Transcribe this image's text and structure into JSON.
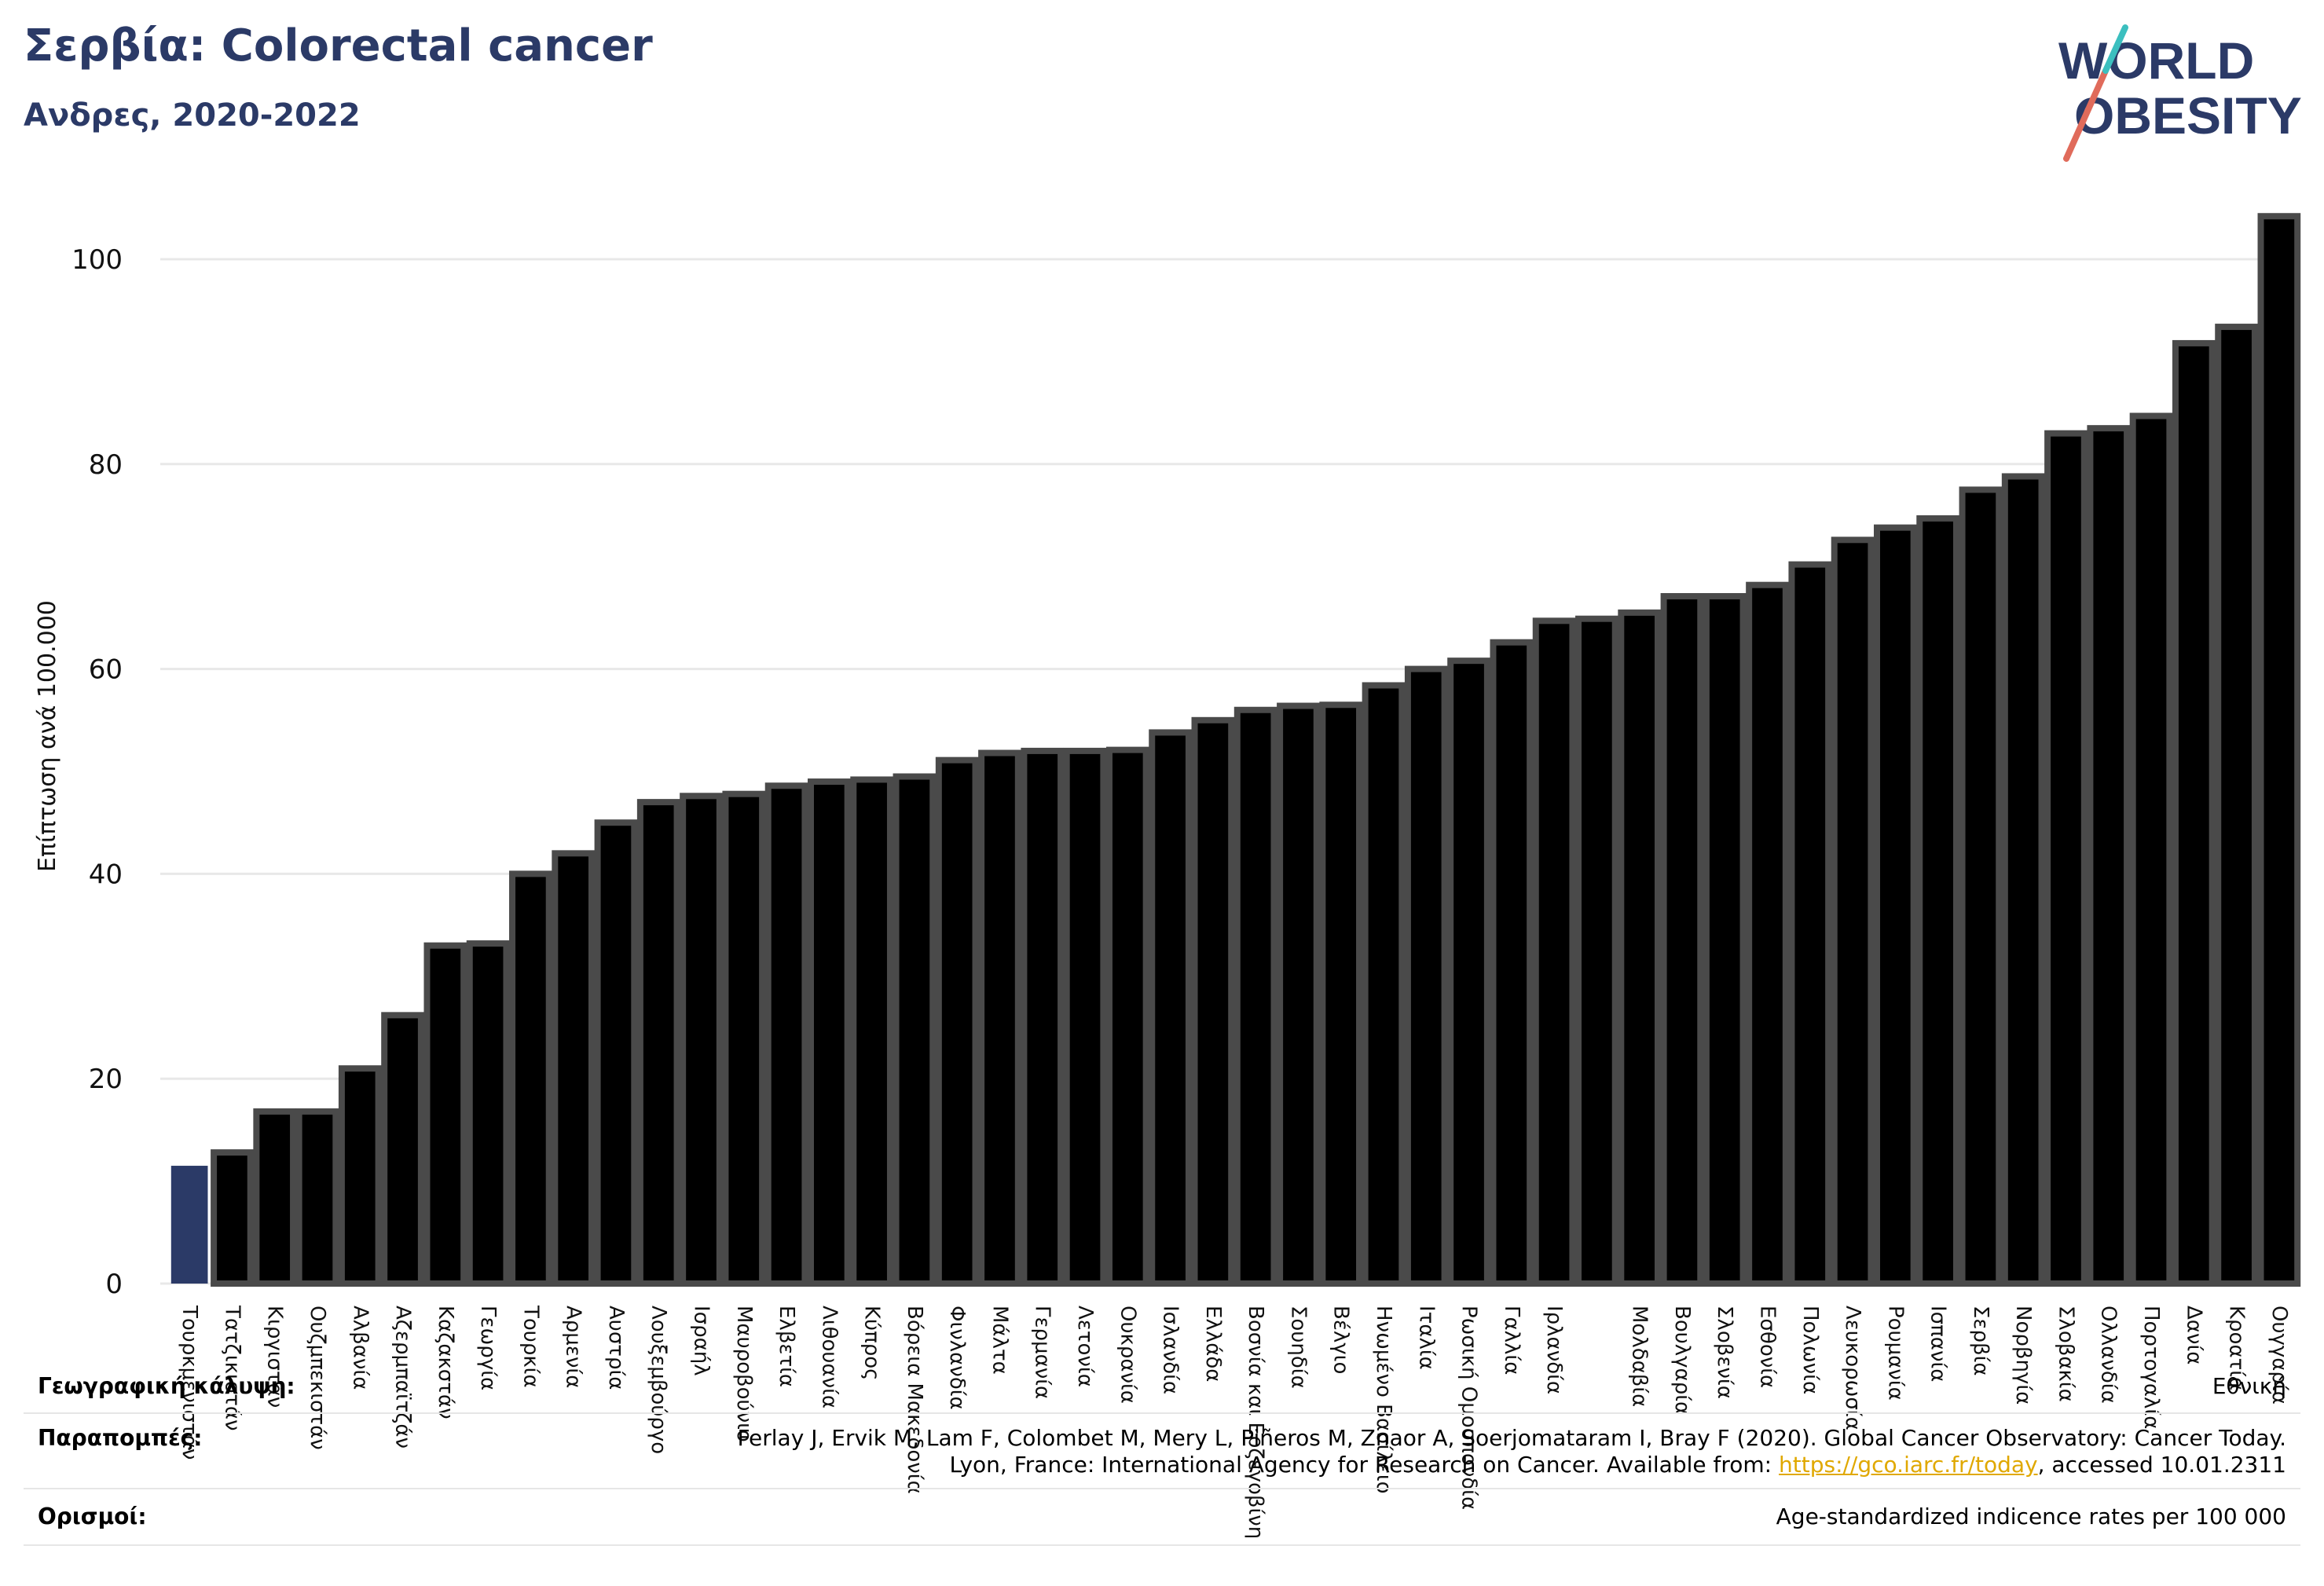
{
  "header": {
    "title": "Σερβία: Colorectal cancer",
    "subtitle": "Ανδρες, 2020-2022"
  },
  "logo": {
    "line1": "WORLD",
    "line2": "OBESITY"
  },
  "chart_data": {
    "type": "bar",
    "title": "Σερβία: Colorectal cancer",
    "subtitle": "Ανδρες, 2020-2022",
    "xlabel": "",
    "ylabel": "Επίπτωση ανά 100.000",
    "ylim": [
      0,
      105
    ],
    "yticks": [
      0,
      20,
      40,
      60,
      80,
      100
    ],
    "grid": true,
    "colors": {
      "highlight": "#2b3a67",
      "bar": "#000000",
      "bar_edge": "#4a4a4a",
      "grid": "#e8e8e8"
    },
    "categories": [
      "Τουρκμενιστάν",
      "Τατζικιστάν",
      "Κιργιστάν",
      "Ουζμπεκιστάν",
      "Αλβανία",
      "Αζερμπαϊτζάν",
      "Καζακστάν",
      "Γεωργία",
      "Τουρκία",
      "Αρμενία",
      "Αυστρία",
      "Λουξεμβούργο",
      "Ισραήλ",
      "Μαυροβούνιο",
      "Ελβετία",
      "Λιθουανία",
      "Κύπρος",
      "Βόρεια Μακεδονία",
      "Φινλανδία",
      "Μάλτα",
      "Γερμανία",
      "Λετονία",
      "Ουκρανία",
      "Ισλανδία",
      "Ελλάδα",
      "Βοσνία και Ερζεγοβίνη",
      "Σουηδία",
      "Βέλγιο",
      "Ηνωμένο Βασίλειο",
      "Ιταλία",
      "Ρωσική Ομοσπονδία",
      "Γαλλία",
      "Ιρλανδία",
      "",
      "Μολδαβία",
      "Βουλγαρία",
      "Σλοβενία",
      "Εσθονία",
      "Πολωνία",
      "Λευκορωσία",
      "Ρουμανία",
      "Ισπανία",
      "Σερβία",
      "Νορβηγία",
      "Σλοβακία",
      "Ολλανδία",
      "Πορτογαλία",
      "Δανία",
      "Κροατία",
      "Ουγγαρία"
    ],
    "values": [
      11.5,
      12.8,
      16.8,
      16.8,
      21.0,
      26.2,
      33.0,
      33.2,
      40.0,
      42.0,
      45.0,
      47.0,
      47.6,
      47.8,
      48.6,
      49.0,
      49.2,
      49.5,
      51.1,
      51.8,
      52.0,
      52.0,
      52.1,
      53.8,
      55.0,
      56.0,
      56.4,
      56.5,
      58.4,
      60.0,
      60.8,
      62.6,
      64.7,
      64.9,
      65.5,
      67.1,
      67.1,
      68.2,
      70.2,
      72.6,
      73.8,
      74.7,
      77.5,
      78.8,
      83.0,
      83.5,
      84.7,
      91.8,
      93.4,
      104.2
    ],
    "highlight_index": 0
  },
  "footer": {
    "geo_label": "Γεωγραφική κάλυψη:",
    "geo_value": "Εθνική",
    "refs_label": "Παραπομπές:",
    "refs_line1": "Ferlay J, Ervik M, Lam F, Colombet M, Mery L, Piñeros M, Znaor A, Soerjomataram I, Bray F (2020). Global Cancer Observatory: Cancer Today.",
    "refs_line2_pre": "Lyon, France: International Agency for Research on Cancer. Available from: ",
    "refs_link": "https://gco.iarc.fr/today",
    "refs_line2_post": ", accessed 10.01.2311",
    "def_label": "Ορισμοί:",
    "def_value": "Age-standardized indicence rates per 100 000"
  }
}
